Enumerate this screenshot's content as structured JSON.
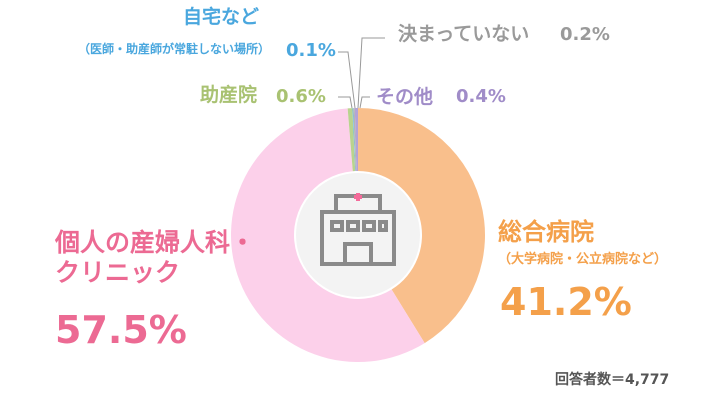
{
  "chart_data": {
    "type": "donut",
    "categories": [
      "総合病院",
      "個人の産婦人科・クリニック",
      "助産院",
      "自宅など",
      "決まっていない",
      "その他"
    ],
    "notes": [
      "（大学病院・公立病院など）",
      null,
      null,
      "（医師・助産師が常駐しない場所）",
      null,
      null
    ],
    "values": [
      41.2,
      57.5,
      0.6,
      0.1,
      0.2,
      0.4
    ],
    "value_labels": [
      "41.2%",
      "57.5%",
      "0.6%",
      "0.1%",
      "0.2%",
      "0.4%"
    ],
    "colors": [
      "#f9bf8c",
      "#fcd0ea",
      "#b9d38e",
      "#6cbde8",
      "#b5b5b5",
      "#b3a3d6"
    ],
    "label_colors": [
      "#f4a04a",
      "#ec6a93",
      "#a9c272",
      "#4aa7de",
      "#9a9a9a",
      "#a08cc8"
    ],
    "footnote": "回答者数＝4,777"
  }
}
